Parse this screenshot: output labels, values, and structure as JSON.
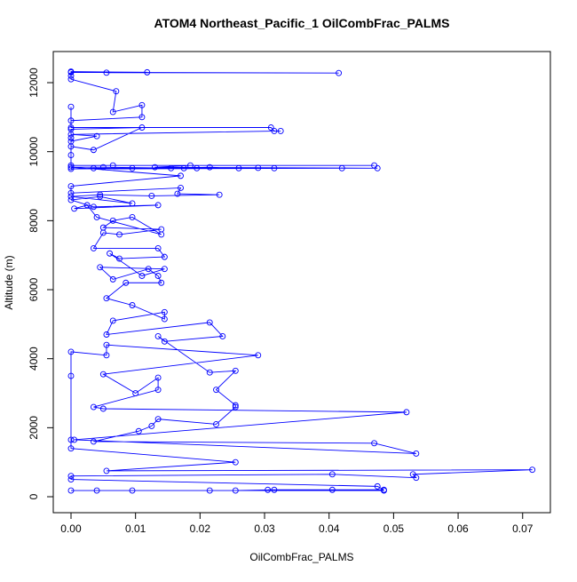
{
  "chart_data": {
    "type": "line",
    "title": "ATOM4 Northeast_Pacific_1 OilCombFrac_PALMS",
    "x_label": "OilCombFrac_PALMS",
    "y_label": "Altitude (m)",
    "color": "#0000ff",
    "x": [
      0,
      0.0415,
      0.0055,
      0.0118,
      0,
      0,
      0,
      0.007,
      0.0065,
      0.011,
      0.011,
      0,
      0,
      0,
      0.031,
      0.0315,
      0.0325,
      0,
      0.004,
      0,
      0,
      0.0035,
      0.011,
      0,
      0,
      0,
      0,
      0.047,
      0.0065,
      0.0185,
      0.013,
      0.0475,
      0.042,
      0,
      0.0035,
      0.0095,
      0.0155,
      0.0215,
      0.026,
      0.029,
      0.0315,
      0.0195,
      0.0175,
      0.005,
      0,
      0.017,
      0,
      0,
      0.017,
      0.0165,
      0.023,
      0.0125,
      0.0045,
      0,
      0.0095,
      0.0045,
      0,
      0.0035,
      0.0135,
      0.0005,
      0.0025,
      0.004,
      0.014,
      0.0095,
      0.0065,
      0.005,
      0.014,
      0.0075,
      0.005,
      0.0035,
      0.0135,
      0.0145,
      0.0075,
      0.006,
      0.011,
      0.0145,
      0.0045,
      0.0065,
      0.012,
      0.0135,
      0.014,
      0.0085,
      0.0055,
      0.0095,
      0.0145,
      0.0145,
      0.0065,
      0.0055,
      0.0215,
      0.0235,
      0.0145,
      0.0135,
      0.0215,
      0.0255,
      0.0225,
      0.0255,
      0.0255,
      0.0225,
      0.0135,
      0.0125,
      0.0105,
      0.0035,
      0.047,
      0.0535,
      0.0005,
      0.052,
      0.005,
      0.0035,
      0.0135,
      0.0135,
      0.01,
      0.005,
      0.029,
      0.0055,
      0.0055,
      0,
      0,
      0,
      0,
      0.0255,
      0.0055,
      0.0715,
      0.053,
      0.0535,
      0.0405,
      0,
      0,
      0.0475,
      0.0485,
      0.0405,
      0.0305,
      0.0315,
      0.0255,
      0.0215,
      0.0095,
      0.004,
      0,
      0.0485
    ],
    "values": [
      12300,
      12280,
      12290,
      12300,
      12320,
      12200,
      12100,
      11750,
      11150,
      11350,
      11000,
      10900,
      11300,
      10700,
      10700,
      10600,
      10600,
      10500,
      10450,
      10300,
      10150,
      10050,
      10700,
      10650,
      10400,
      9900,
      9600,
      9600,
      9600,
      9600,
      9550,
      9520,
      9520,
      9500,
      9520,
      9520,
      9520,
      9550,
      9520,
      9530,
      9520,
      9520,
      9520,
      9550,
      9550,
      9300,
      9000,
      8800,
      8950,
      8780,
      8750,
      8720,
      8750,
      8700,
      8500,
      8700,
      8600,
      8400,
      8450,
      8350,
      8450,
      8100,
      7600,
      8100,
      8000,
      7800,
      7750,
      7600,
      7650,
      7200,
      7200,
      6950,
      6900,
      7050,
      6400,
      6600,
      6650,
      6300,
      6600,
      6400,
      6200,
      6200,
      5750,
      5550,
      5150,
      5350,
      5100,
      4700,
      5050,
      4650,
      4500,
      4650,
      3600,
      3650,
      3100,
      2650,
      2600,
      2100,
      2250,
      2050,
      1900,
      1600,
      1550,
      1250,
      1650,
      2450,
      2550,
      2600,
      3100,
      3450,
      3000,
      3550,
      4100,
      4400,
      4100,
      4200,
      3500,
      1650,
      1400,
      1000,
      750,
      780,
      650,
      550,
      650,
      600,
      500,
      300,
      200,
      200,
      200,
      200,
      180,
      180,
      180,
      180,
      180,
      180
    ],
    "xlim": [
      -0.00275,
      0.0743
    ],
    "ylim": [
      -463,
      12902
    ],
    "xticks": [
      {
        "value": 0,
        "label": "0.00"
      },
      0.01,
      0.02,
      0.03,
      0.04,
      0.05,
      0.06,
      0.07
    ],
    "yticks": [
      0,
      2000,
      4000,
      6000,
      8000,
      10000,
      12000
    ]
  }
}
